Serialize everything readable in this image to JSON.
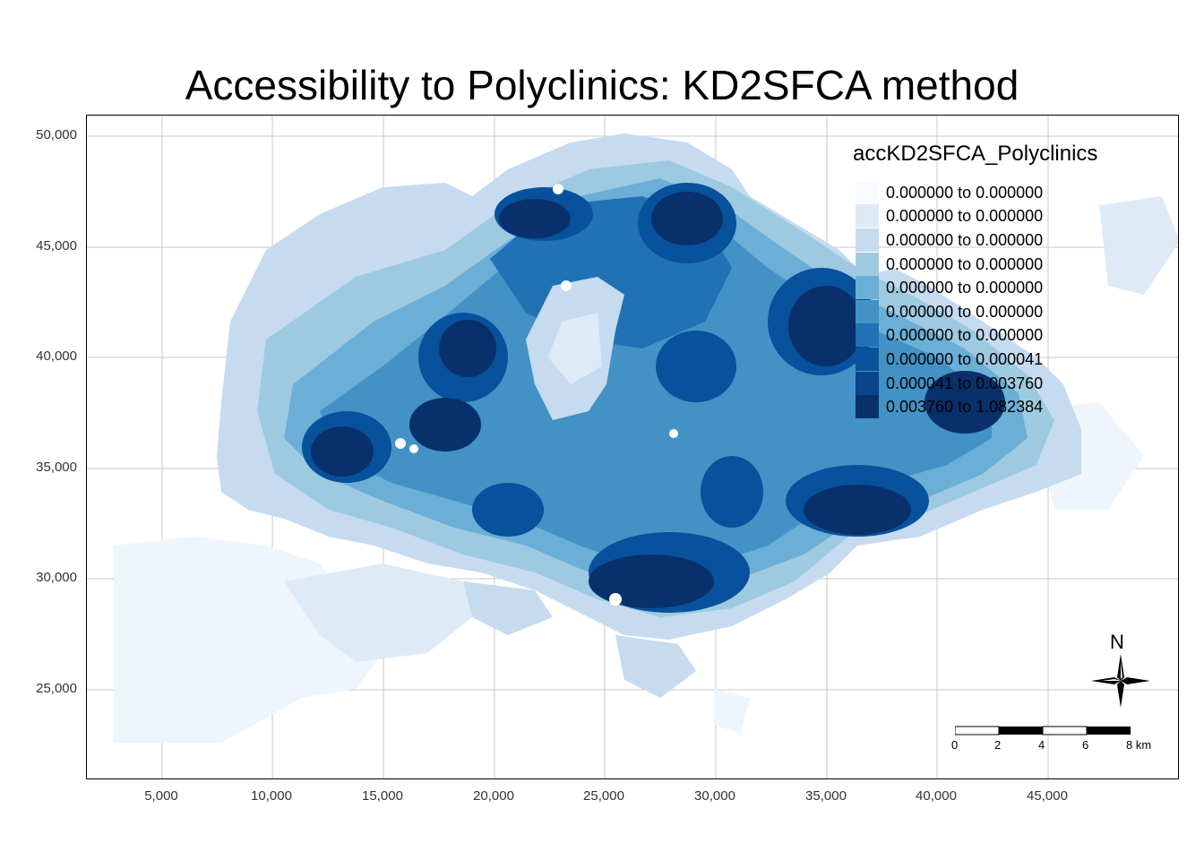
{
  "title": "Accessibility to Polyclinics: KD2SFCA method",
  "legend": {
    "title": "accKD2SFCA_Polyclinics",
    "items": [
      {
        "label": "0.000000 to 0.000000",
        "color": "#f7fbff"
      },
      {
        "label": "0.000000 to 0.000000",
        "color": "#deebf7"
      },
      {
        "label": "0.000000 to 0.000000",
        "color": "#c6dbef"
      },
      {
        "label": "0.000000 to 0.000000",
        "color": "#9ecae1"
      },
      {
        "label": "0.000000 to 0.000000",
        "color": "#6baed6"
      },
      {
        "label": "0.000000 to 0.000000",
        "color": "#4292c6"
      },
      {
        "label": "0.000000 to 0.000000",
        "color": "#2171b5"
      },
      {
        "label": "0.000000 to 0.000041",
        "color": "#08519c"
      },
      {
        "label": "0.000041 to 0.003760",
        "color": "#08458a"
      },
      {
        "label": "0.003760 to 1.082384",
        "color": "#08306b"
      }
    ]
  },
  "axes": {
    "y_ticks": [
      "50,000",
      "45,000",
      "40,000",
      "35,000",
      "30,000",
      "25,000"
    ],
    "x_ticks": [
      "5,000",
      "10,000",
      "15,000",
      "20,000",
      "25,000",
      "30,000",
      "35,000",
      "40,000",
      "45,000"
    ]
  },
  "north_arrow": {
    "label": "N"
  },
  "scale_bar": {
    "ticks": [
      "0",
      "2",
      "4",
      "6",
      "8 km"
    ]
  }
}
